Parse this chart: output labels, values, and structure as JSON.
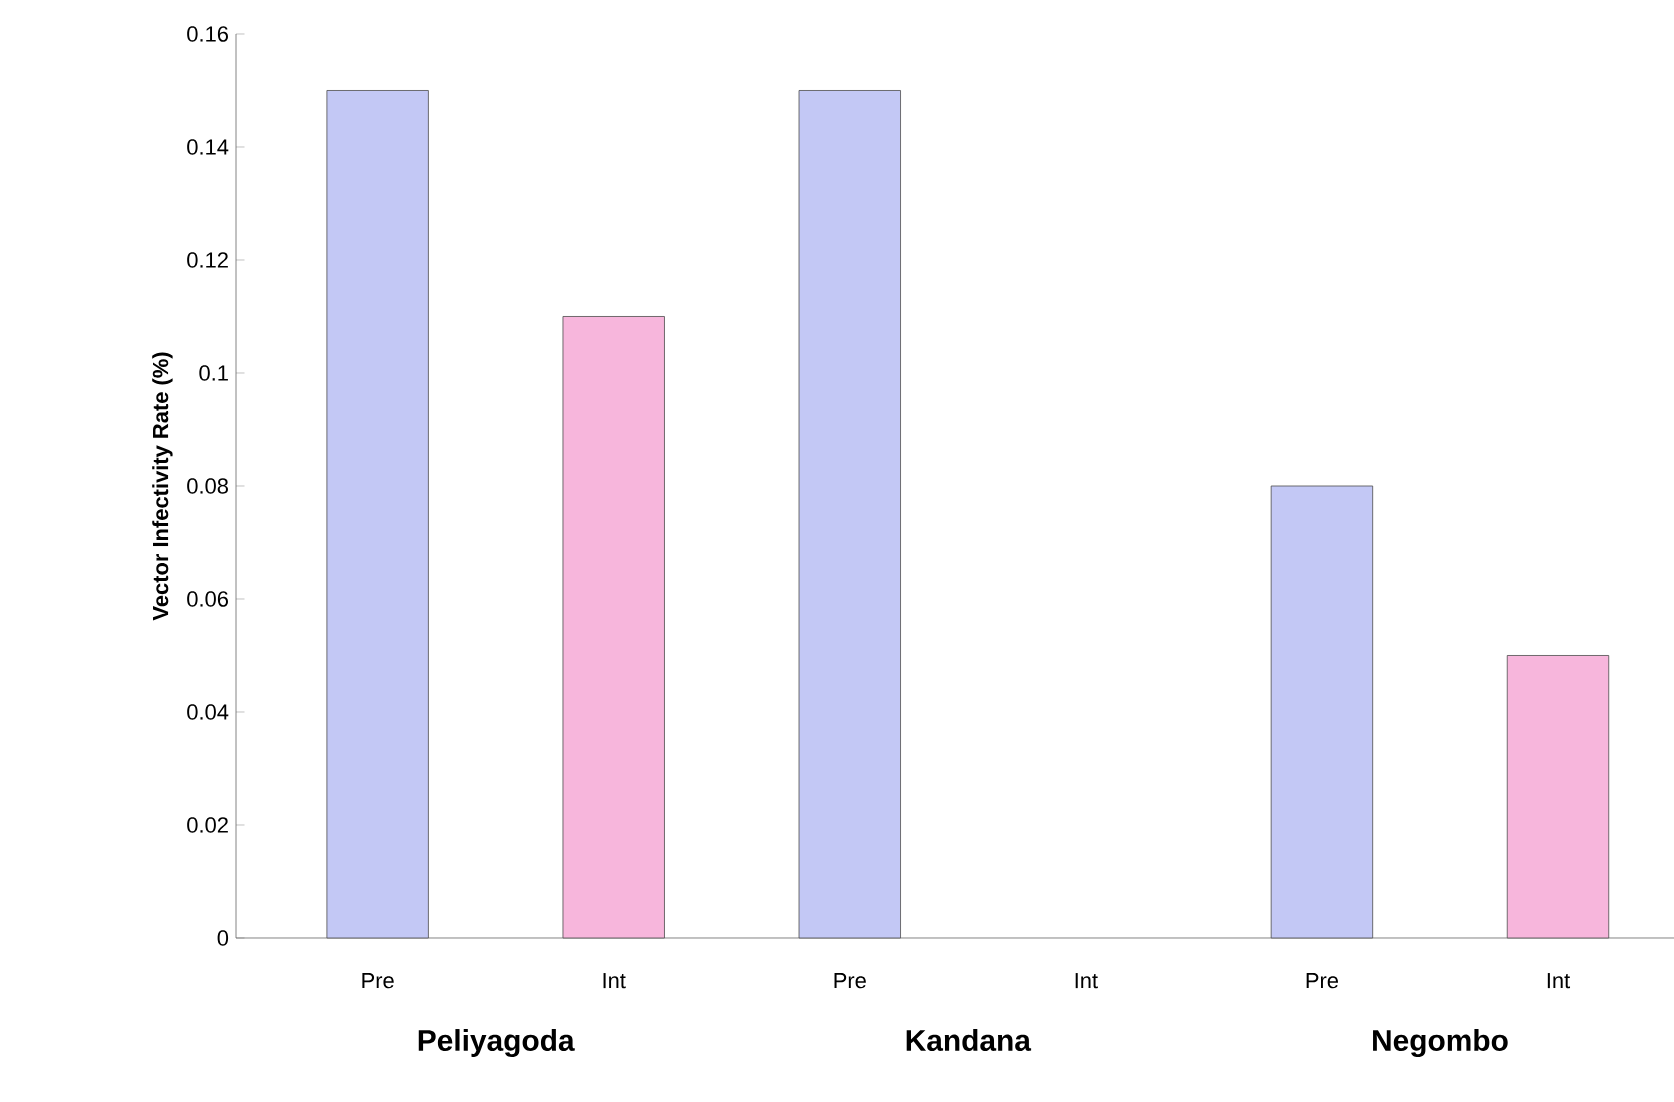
{
  "chart_data": {
    "type": "bar",
    "ylabel": "Vector Infectivity Rate (%)",
    "categories": [
      "Peliyagoda",
      "Kandana",
      "Negombo"
    ],
    "series": [
      {
        "name": "Pre",
        "color": "#c3c8f5",
        "values": [
          0.15,
          0.15,
          0.08
        ]
      },
      {
        "name": "Int",
        "color": "#f7b6dc",
        "values": [
          0.11,
          null,
          0.05
        ]
      }
    ],
    "ylim": [
      0,
      0.16
    ],
    "yticks": [
      0,
      0.02,
      0.04,
      0.06,
      0.08,
      0.1,
      0.12,
      0.14,
      0.16
    ],
    "grid": false
  }
}
